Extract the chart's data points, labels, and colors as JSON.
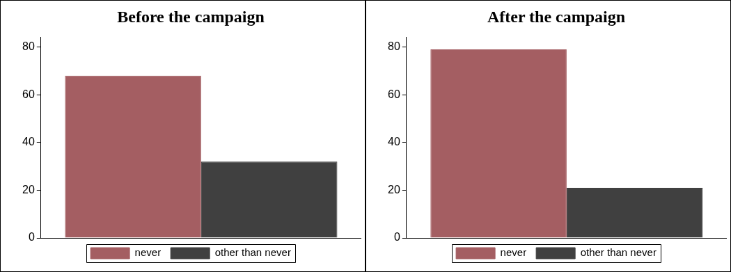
{
  "chart_data": [
    {
      "type": "bar",
      "title": "Before the campaign",
      "categories": [
        null
      ],
      "ylim": [
        0,
        84
      ],
      "yticks": [
        0,
        20,
        40,
        60,
        80
      ],
      "grid": false,
      "legend": "bottom",
      "tick_labels": "y",
      "series": [
        {
          "name": "never",
          "color": "#a45e62",
          "values": [
            68
          ]
        },
        {
          "name": "other than never",
          "color": "#404040",
          "values": [
            32
          ]
        }
      ]
    },
    {
      "type": "bar",
      "title": "After the campaign",
      "categories": [
        null
      ],
      "ylim": [
        0,
        84
      ],
      "yticks": [
        0,
        20,
        40,
        60,
        80
      ],
      "grid": false,
      "legend": "bottom",
      "tick_labels": "y",
      "series": [
        {
          "name": "never",
          "color": "#a45e62",
          "values": [
            79
          ]
        },
        {
          "name": "other than never",
          "color": "#404040",
          "values": [
            21
          ]
        }
      ]
    }
  ]
}
